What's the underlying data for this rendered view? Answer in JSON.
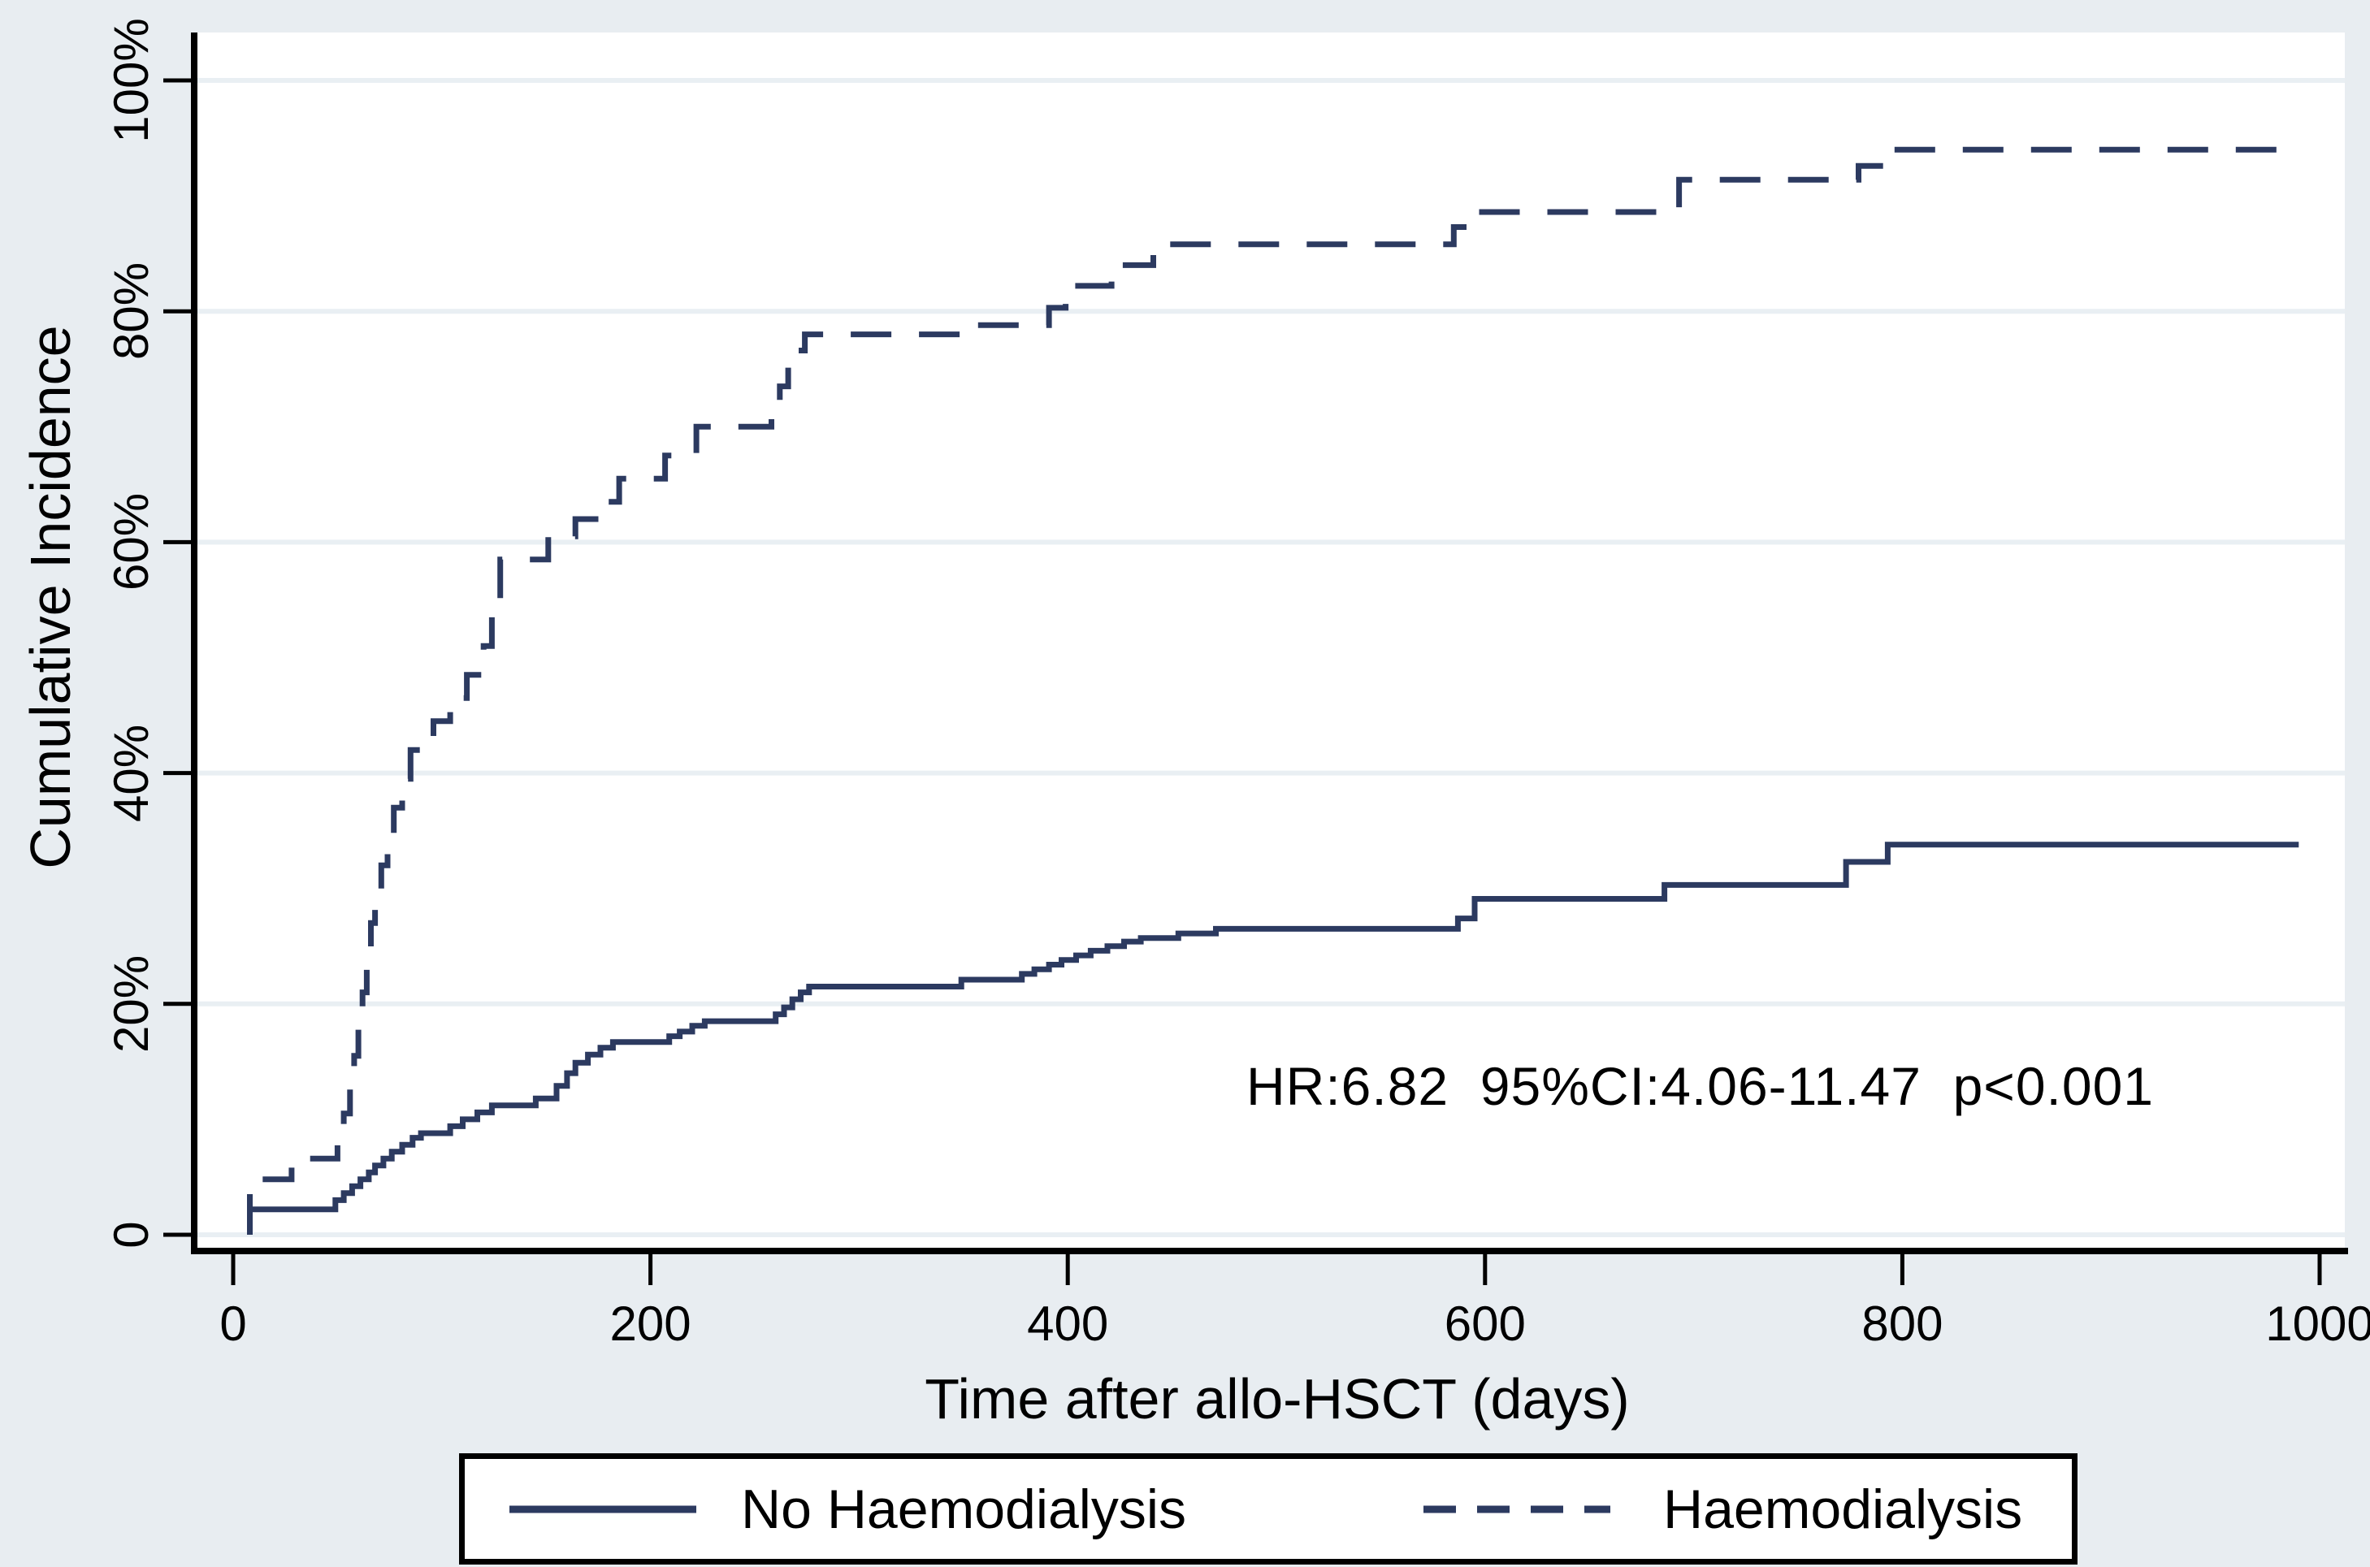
{
  "figure": {
    "background_color": "#e8edf1",
    "plot_background_color": "#ffffff",
    "gridline_color": "#e9eff3",
    "axis_color": "#000000",
    "curve_color": "#2c3a60",
    "annotation_color": "#000000"
  },
  "chart_data": {
    "type": "line",
    "subtype": "step-function-cumulative-incidence",
    "title": "",
    "xlabel": "Time after allo-HSCT (days)",
    "ylabel": "Cumulative Incidence",
    "xlim": [
      0,
      1035
    ],
    "ylim": [
      0,
      100
    ],
    "grid": "horizontal",
    "legend_position": "bottom",
    "annotation": "HR:6.82  95%CI:4.06-11.47  p<0.001",
    "x_ticks": [
      {
        "value": 0,
        "label": "0"
      },
      {
        "value": 200,
        "label": "200"
      },
      {
        "value": 400,
        "label": "400"
      },
      {
        "value": 600,
        "label": "600"
      },
      {
        "value": 800,
        "label": "800"
      },
      {
        "value": 1000,
        "label": "1000"
      }
    ],
    "y_ticks": [
      {
        "value": 0,
        "label": "0"
      },
      {
        "value": 20,
        "label": "20%"
      },
      {
        "value": 40,
        "label": "40%"
      },
      {
        "value": 60,
        "label": "60%"
      },
      {
        "value": 80,
        "label": "80%"
      },
      {
        "value": 100,
        "label": "100%"
      }
    ],
    "series": [
      {
        "name": "No Haemodialysis",
        "line_style": "solid",
        "points": [
          [
            8,
            0
          ],
          [
            8,
            2.2
          ],
          [
            47,
            2.2
          ],
          [
            49,
            3
          ],
          [
            53,
            3.6
          ],
          [
            57,
            4.2
          ],
          [
            61,
            4.8
          ],
          [
            65,
            5.4
          ],
          [
            68,
            6
          ],
          [
            72,
            6.6
          ],
          [
            76,
            7.2
          ],
          [
            81,
            7.8
          ],
          [
            86,
            8.4
          ],
          [
            90,
            8.8
          ],
          [
            101,
            8.8
          ],
          [
            104,
            9.4
          ],
          [
            110,
            10
          ],
          [
            117,
            10.6
          ],
          [
            124,
            11.2
          ],
          [
            142,
            11.2
          ],
          [
            145,
            11.8
          ],
          [
            152,
            11.8
          ],
          [
            155,
            12.9
          ],
          [
            160,
            14
          ],
          [
            164,
            14.9
          ],
          [
            170,
            15.6
          ],
          [
            176,
            16.2
          ],
          [
            182,
            16.7
          ],
          [
            206,
            16.7
          ],
          [
            209,
            17.2
          ],
          [
            214,
            17.6
          ],
          [
            220,
            18.1
          ],
          [
            226,
            18.5
          ],
          [
            257,
            18.5
          ],
          [
            260,
            19.1
          ],
          [
            264,
            19.7
          ],
          [
            268,
            20.4
          ],
          [
            272,
            21
          ],
          [
            276,
            21.5
          ],
          [
            346,
            21.5
          ],
          [
            349,
            22.1
          ],
          [
            374,
            22.1
          ],
          [
            378,
            22.6
          ],
          [
            384,
            23
          ],
          [
            391,
            23.4
          ],
          [
            397,
            23.8
          ],
          [
            404,
            24.2
          ],
          [
            411,
            24.6
          ],
          [
            419,
            25
          ],
          [
            427,
            25.4
          ],
          [
            435,
            25.7
          ],
          [
            453,
            26.1
          ],
          [
            471,
            26.5
          ],
          [
            584,
            26.5
          ],
          [
            587,
            27.4
          ],
          [
            595,
            29.1
          ],
          [
            682,
            29.1
          ],
          [
            686,
            30.3
          ],
          [
            769,
            30.3
          ],
          [
            773,
            32.3
          ],
          [
            790,
            32.3
          ],
          [
            793,
            33.8
          ],
          [
            990,
            33.8
          ]
        ]
      },
      {
        "name": "Haemodialysis",
        "line_style": "dashed",
        "points": [
          [
            8,
            0
          ],
          [
            8,
            4.8
          ],
          [
            26,
            4.8
          ],
          [
            28,
            6.6
          ],
          [
            48,
            6.6
          ],
          [
            50,
            8.2
          ],
          [
            53,
            10.5
          ],
          [
            56,
            13
          ],
          [
            58,
            15.5
          ],
          [
            60,
            18
          ],
          [
            62,
            21
          ],
          [
            64,
            24
          ],
          [
            66,
            27
          ],
          [
            68,
            29.5
          ],
          [
            71,
            32
          ],
          [
            74,
            34.5
          ],
          [
            77,
            37
          ],
          [
            81,
            39.5
          ],
          [
            85,
            42
          ],
          [
            93,
            42
          ],
          [
            96,
            44.5
          ],
          [
            101,
            44.5
          ],
          [
            104,
            46.5
          ],
          [
            109,
            46.5
          ],
          [
            112,
            48.5
          ],
          [
            117,
            48.5
          ],
          [
            120,
            51
          ],
          [
            124,
            54
          ],
          [
            128,
            58.5
          ],
          [
            147,
            58.5
          ],
          [
            151,
            60.5
          ],
          [
            160,
            60.5
          ],
          [
            164,
            62
          ],
          [
            172,
            62
          ],
          [
            176,
            63.5
          ],
          [
            182,
            63.5
          ],
          [
            185,
            65.5
          ],
          [
            203,
            65.5
          ],
          [
            207,
            67.5
          ],
          [
            218,
            67.5
          ],
          [
            222,
            70
          ],
          [
            254,
            70
          ],
          [
            258,
            72
          ],
          [
            262,
            73.5
          ],
          [
            266,
            75.3
          ],
          [
            270,
            76.6
          ],
          [
            274,
            78
          ],
          [
            350,
            78
          ],
          [
            356,
            78.8
          ],
          [
            385,
            78.8
          ],
          [
            391,
            80.3
          ],
          [
            395,
            80.3
          ],
          [
            399,
            82.2
          ],
          [
            417,
            82.2
          ],
          [
            421,
            84
          ],
          [
            436,
            84
          ],
          [
            441,
            85.8
          ],
          [
            580,
            85.8
          ],
          [
            585,
            87.3
          ],
          [
            592,
            88.6
          ],
          [
            688,
            88.6
          ],
          [
            693,
            91.4
          ],
          [
            775,
            91.4
          ],
          [
            779,
            92.6
          ],
          [
            788,
            92.6
          ],
          [
            793,
            94
          ],
          [
            990,
            94
          ]
        ]
      }
    ]
  },
  "legend": {
    "items": [
      {
        "label": "No Haemodialysis",
        "line_style": "solid"
      },
      {
        "label": "Haemodialysis",
        "line_style": "dashed"
      }
    ]
  }
}
